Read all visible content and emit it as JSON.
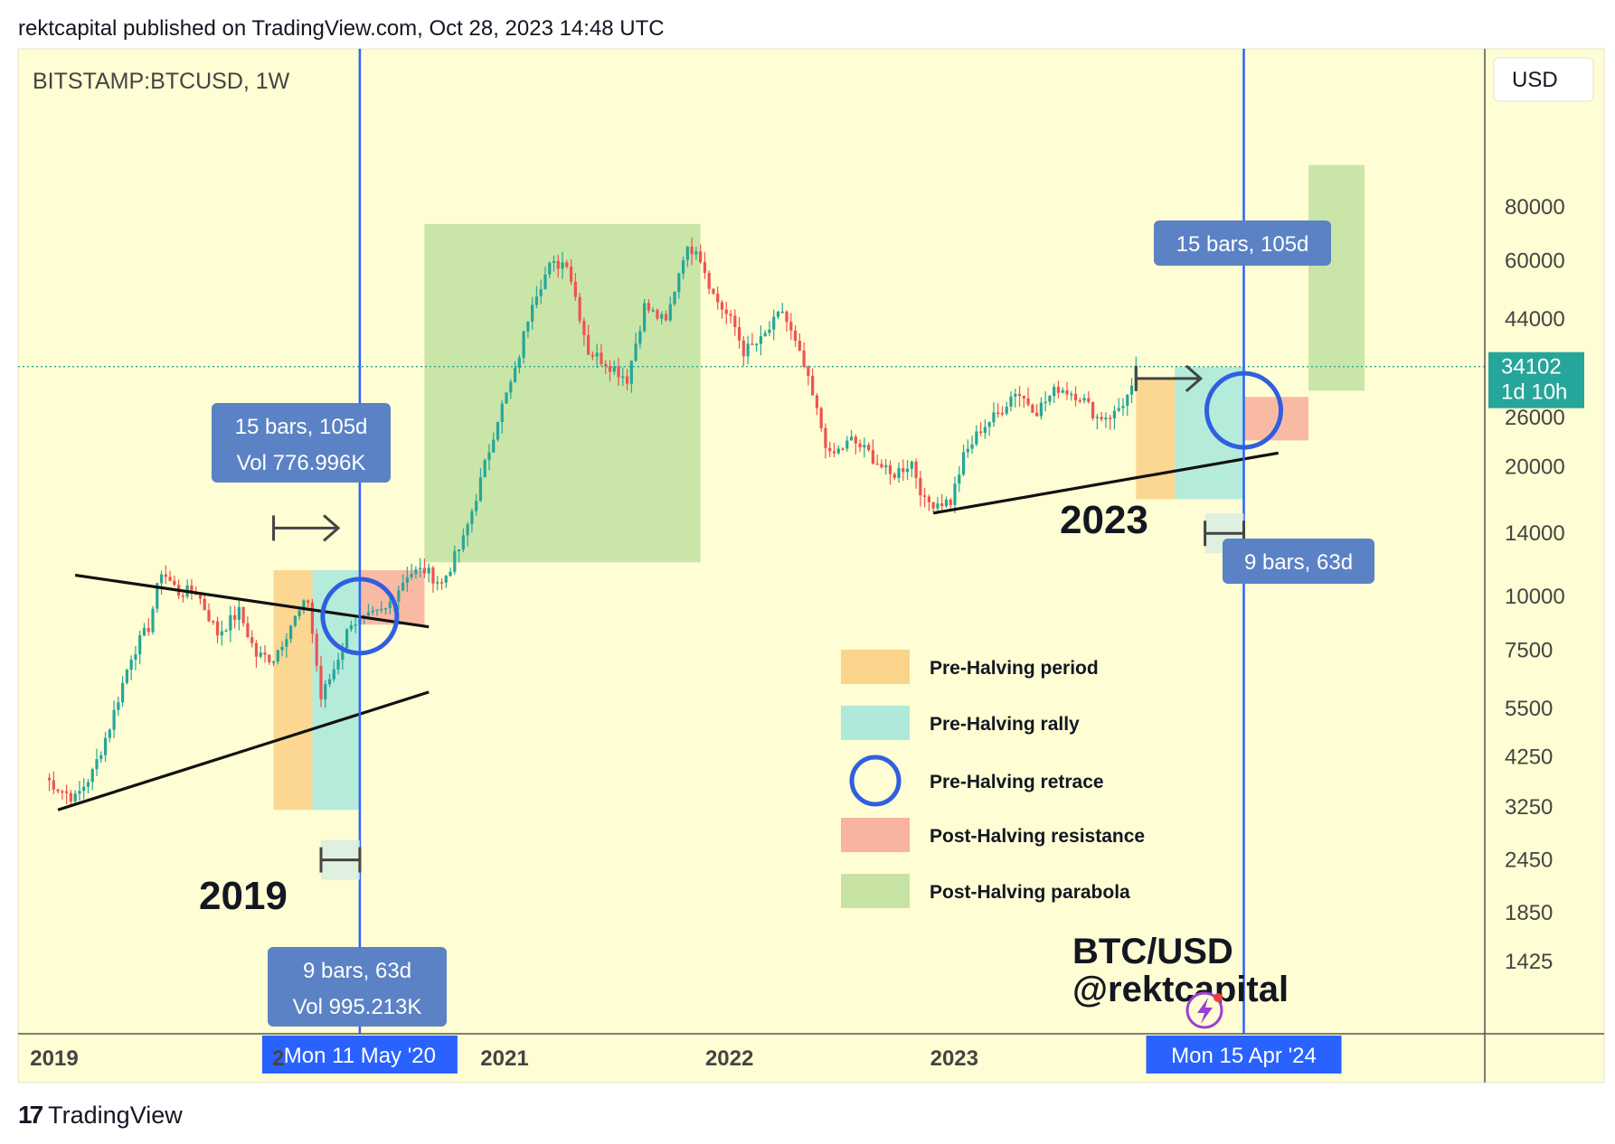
{
  "header": {
    "published": "rektcapital published on TradingView.com, Oct 28, 2023 14:48 UTC"
  },
  "footer": {
    "logo_glyph": "17",
    "brand": "TradingView"
  },
  "colors": {
    "background": "#fefdd3",
    "up": "#26a69a",
    "down": "#ef5350",
    "pre_halving_period": "#fbd48c",
    "pre_halving_rally": "#aee9da",
    "pre_halving_retrace": "#2f5fe0",
    "post_halving_resistance": "#f9b4a0",
    "post_halving_parabola": "#c6e3a4",
    "halving_line": "#2962ff",
    "label_box": "#5b82c5",
    "price_tag": "#26a69a"
  },
  "chart_data": {
    "type": "candlestick",
    "symbol": "BITSTAMP:BTCUSD, 1W",
    "currency": "USD",
    "y_scale": "log",
    "y_ticks": [
      "80000",
      "60000",
      "44000",
      "26000",
      "20000",
      "14000",
      "10000",
      "7500",
      "5500",
      "4250",
      "3250",
      "2450",
      "1850",
      "1425"
    ],
    "x_ticks": [
      "2019",
      "2021",
      "2022",
      "2023"
    ],
    "x_tick_partial": "2",
    "last_price": "34102",
    "countdown": "1d 10h",
    "halving_dates": [
      "Mon 11 May '20",
      "Mon 15 Apr '24"
    ],
    "series": [
      {
        "name": "BTC/USD weekly close",
        "points": [
          [
            "2018-12-17",
            3800
          ],
          [
            "2019-01-07",
            3600
          ],
          [
            "2019-02-04",
            3400
          ],
          [
            "2019-03-04",
            3900
          ],
          [
            "2019-04-01",
            5000
          ],
          [
            "2019-05-06",
            7300
          ],
          [
            "2019-06-03",
            8500
          ],
          [
            "2019-06-24",
            11500
          ],
          [
            "2019-07-22",
            10200
          ],
          [
            "2019-08-19",
            10300
          ],
          [
            "2019-09-23",
            8200
          ],
          [
            "2019-10-28",
            9200
          ],
          [
            "2019-11-25",
            7300
          ],
          [
            "2019-12-23",
            7200
          ],
          [
            "2020-01-20",
            8600
          ],
          [
            "2020-02-17",
            9800
          ],
          [
            "2020-03-09",
            5800
          ],
          [
            "2020-03-30",
            6800
          ],
          [
            "2020-04-27",
            8800
          ],
          [
            "2020-05-11",
            8700
          ],
          [
            "2020-06-22",
            9300
          ],
          [
            "2020-07-27",
            11300
          ],
          [
            "2020-08-24",
            11500
          ],
          [
            "2020-09-21",
            10700
          ],
          [
            "2020-10-26",
            13500
          ],
          [
            "2020-11-23",
            18500
          ],
          [
            "2020-12-21",
            26000
          ],
          [
            "2021-01-18",
            33000
          ],
          [
            "2021-02-15",
            49000
          ],
          [
            "2021-03-15",
            58000
          ],
          [
            "2021-04-12",
            60000
          ],
          [
            "2021-05-17",
            37000
          ],
          [
            "2021-06-14",
            35000
          ],
          [
            "2021-07-19",
            32000
          ],
          [
            "2021-08-16",
            47000
          ],
          [
            "2021-09-20",
            43000
          ],
          [
            "2021-10-18",
            62000
          ],
          [
            "2021-11-08",
            65000
          ],
          [
            "2021-12-06",
            50000
          ],
          [
            "2022-01-10",
            42000
          ],
          [
            "2022-01-24",
            37000
          ],
          [
            "2022-02-21",
            39000
          ],
          [
            "2022-03-28",
            46000
          ],
          [
            "2022-05-02",
            34000
          ],
          [
            "2022-06-13",
            21000
          ],
          [
            "2022-07-18",
            23000
          ],
          [
            "2022-08-15",
            21500
          ],
          [
            "2022-09-19",
            19000
          ],
          [
            "2022-10-24",
            20500
          ],
          [
            "2022-11-14",
            16500
          ],
          [
            "2022-12-26",
            16600
          ],
          [
            "2023-01-16",
            21000
          ],
          [
            "2023-02-13",
            24500
          ],
          [
            "2023-03-13",
            26500
          ],
          [
            "2023-04-10",
            30000
          ],
          [
            "2023-05-15",
            27000
          ],
          [
            "2023-06-19",
            30500
          ],
          [
            "2023-07-24",
            29200
          ],
          [
            "2023-08-21",
            26000
          ],
          [
            "2023-09-18",
            26500
          ],
          [
            "2023-10-16",
            30000
          ],
          [
            "2023-10-23",
            34102
          ]
        ]
      }
    ],
    "trend_lines": [
      {
        "from": [
          "2019-01-07",
          3200
        ],
        "to": [
          "2020-08-31",
          6000
        ]
      },
      {
        "from": [
          "2019-02-04",
          11200
        ],
        "to": [
          "2020-08-31",
          8500
        ]
      },
      {
        "from": [
          "2022-11-28",
          15600
        ],
        "to": [
          "2024-06-10",
          21500
        ]
      }
    ],
    "zones": [
      {
        "kind": "pre_halving_period",
        "x": [
          "2019-12-23",
          "2020-02-24"
        ],
        "y": [
          3200,
          11500
        ]
      },
      {
        "kind": "pre_halving_rally",
        "x": [
          "2020-02-24",
          "2020-05-11"
        ],
        "y": [
          3200,
          11500
        ]
      },
      {
        "kind": "post_halving_resistance",
        "x": [
          "2020-05-11",
          "2020-08-24"
        ],
        "y": [
          8600,
          11500
        ]
      },
      {
        "kind": "post_halving_parabola",
        "x": [
          "2020-08-24",
          "2021-11-15"
        ],
        "y": [
          12000,
          73000
        ]
      },
      {
        "kind": "pre_halving_period",
        "x": [
          "2023-10-23",
          "2023-12-25"
        ],
        "y": [
          16800,
          32000
        ]
      },
      {
        "kind": "pre_halving_rally",
        "x": [
          "2023-12-25",
          "2024-04-15"
        ],
        "y": [
          16800,
          34000
        ]
      },
      {
        "kind": "post_halving_resistance",
        "x": [
          "2024-04-15",
          "2024-07-29"
        ],
        "y": [
          23000,
          29000
        ]
      },
      {
        "kind": "post_halving_parabola",
        "x": [
          "2024-07-29",
          "2024-10-28"
        ],
        "y": [
          30000,
          100000
        ]
      }
    ],
    "circles": [
      {
        "center": [
          "2020-05-11",
          9000
        ]
      },
      {
        "center": [
          "2024-04-15",
          27000
        ]
      }
    ],
    "measures": [
      {
        "text": [
          "15 bars, 105d",
          "Vol 776.996K"
        ],
        "arrow": {
          "x": [
            "2019-12-23",
            "2020-04-06"
          ],
          "y": 14400
        }
      },
      {
        "text": [
          "9 bars, 63d",
          "Vol 995.213K"
        ],
        "arrow": {
          "x": [
            "2020-03-09",
            "2020-05-11"
          ],
          "y": 2450
        }
      },
      {
        "text": [
          "15 bars, 105d"
        ],
        "arrow": {
          "x": [
            "2023-10-23",
            "2024-02-05"
          ],
          "y": 32000
        }
      },
      {
        "text": [
          "9 bars, 63d"
        ],
        "arrow": {
          "x": [
            "2024-02-12",
            "2024-04-15"
          ],
          "y": 14000
        }
      }
    ],
    "year_labels": [
      "2019",
      "2023"
    ],
    "watermark": [
      "BTC/USD",
      "@rektcapital"
    ],
    "legend": [
      {
        "kind": "pre_halving_period",
        "label": "Pre-Halving period"
      },
      {
        "kind": "pre_halving_rally",
        "label": "Pre-Halving rally"
      },
      {
        "kind": "pre_halving_retrace",
        "label": "Pre-Halving retrace"
      },
      {
        "kind": "post_halving_resistance",
        "label": "Post-Halving resistance"
      },
      {
        "kind": "post_halving_parabola",
        "label": "Post-Halving parabola"
      }
    ]
  }
}
